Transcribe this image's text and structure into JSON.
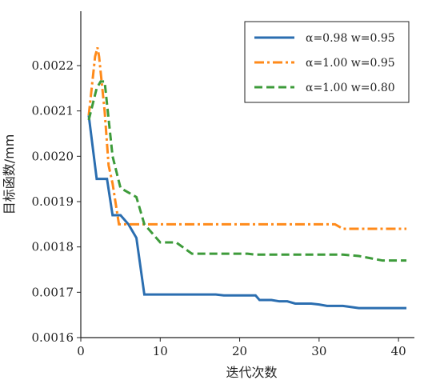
{
  "chart_data": {
    "type": "line",
    "title": "",
    "xlabel": "迭代次数",
    "ylabel": "目标函数/mm",
    "xlim": [
      0,
      42
    ],
    "ylim": [
      0.0016,
      0.00232
    ],
    "xticks": [
      0,
      10,
      20,
      30,
      40
    ],
    "yticks": [
      "0.0016",
      "0.0017",
      "0.0018",
      "0.0019",
      "0.0020",
      "0.0021",
      "0.0022"
    ],
    "grid": false,
    "legend_position": "top-right",
    "series": [
      {
        "name": "α=0.98  w=0.95",
        "color": "#2b6eb0",
        "style": "solid",
        "points": [
          [
            1,
            0.00209
          ],
          [
            2,
            0.00195
          ],
          [
            3,
            0.00195
          ],
          [
            3.3,
            0.00195
          ],
          [
            4,
            0.00187
          ],
          [
            5,
            0.00187
          ],
          [
            6,
            0.00185
          ],
          [
            7,
            0.00182
          ],
          [
            8,
            0.001695
          ],
          [
            17,
            0.001695
          ],
          [
            18,
            0.001693
          ],
          [
            22,
            0.001693
          ],
          [
            22.5,
            0.001683
          ],
          [
            24,
            0.001683
          ],
          [
            25,
            0.00168
          ],
          [
            26,
            0.00168
          ],
          [
            27,
            0.001675
          ],
          [
            29,
            0.001675
          ],
          [
            30,
            0.001673
          ],
          [
            31,
            0.00167
          ],
          [
            33,
            0.00167
          ],
          [
            35,
            0.001665
          ],
          [
            41,
            0.001665
          ]
        ]
      },
      {
        "name": "α=1.00  w=0.95",
        "color": "#ff8a1a",
        "style": "dashdot",
        "points": [
          [
            1,
            0.00209
          ],
          [
            1.8,
            0.00222
          ],
          [
            2.1,
            0.00224
          ],
          [
            2.3,
            0.00222
          ],
          [
            3,
            0.0021
          ],
          [
            3.5,
            0.00198
          ],
          [
            4,
            0.00194
          ],
          [
            4.8,
            0.00185
          ],
          [
            32,
            0.00185
          ],
          [
            33,
            0.00184
          ],
          [
            41,
            0.00184
          ]
        ]
      },
      {
        "name": "α=1.00  w=0.80",
        "color": "#3d9b3a",
        "style": "dashed",
        "points": [
          [
            1,
            0.00208
          ],
          [
            2,
            0.00215
          ],
          [
            2.5,
            0.002165
          ],
          [
            3,
            0.002165
          ],
          [
            4,
            0.002
          ],
          [
            5,
            0.00193
          ],
          [
            6,
            0.00192
          ],
          [
            7,
            0.00191
          ],
          [
            8,
            0.00185
          ],
          [
            9,
            0.00183
          ],
          [
            10,
            0.00181
          ],
          [
            12,
            0.00181
          ],
          [
            14,
            0.001785
          ],
          [
            21,
            0.001785
          ],
          [
            22,
            0.001783
          ],
          [
            33,
            0.001783
          ],
          [
            35,
            0.00178
          ],
          [
            38,
            0.00177
          ],
          [
            41,
            0.00177
          ]
        ]
      }
    ]
  }
}
